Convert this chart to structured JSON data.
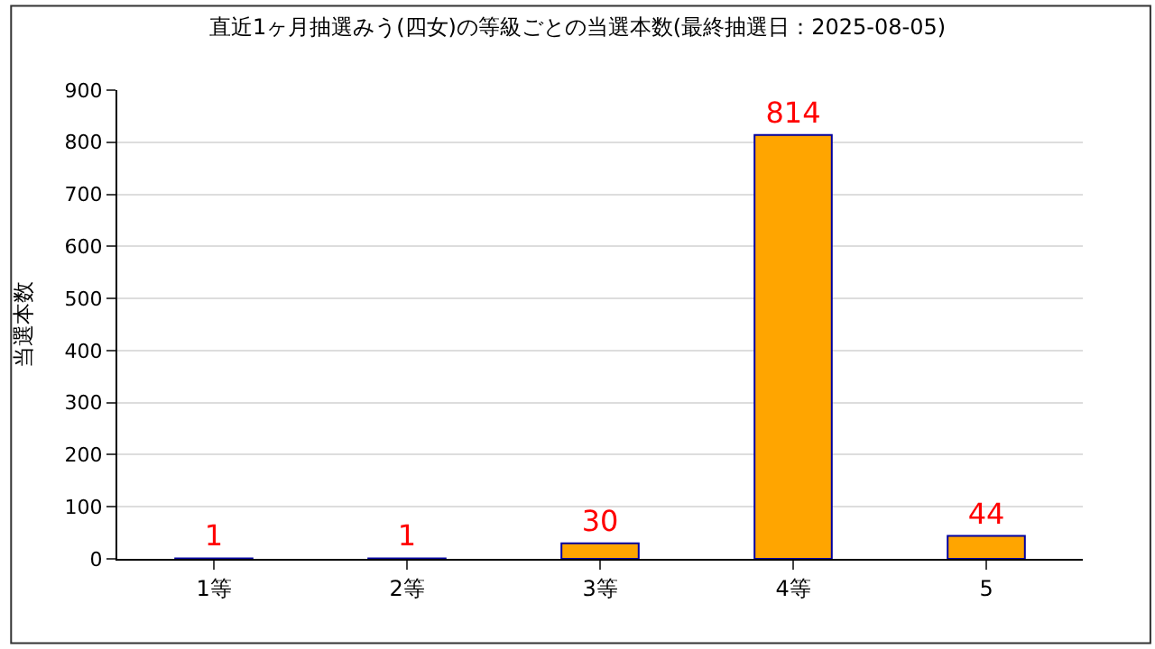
{
  "chart_data": {
    "type": "bar",
    "title": "直近1ヶ月抽選みう(四女)の等級ごとの当選本数(最終抽選日：2025-08-05)",
    "ylabel": "当選本数",
    "categories": [
      "1等",
      "2等",
      "3等",
      "4等",
      "5"
    ],
    "values": [
      1,
      1,
      30,
      814,
      44
    ],
    "color": "#ffa500",
    "data_labels": true,
    "ylim": [
      0,
      900
    ],
    "yticks": [
      0,
      100,
      200,
      300,
      400,
      500,
      600,
      700,
      800,
      900
    ],
    "grid": "y",
    "legend": false
  }
}
